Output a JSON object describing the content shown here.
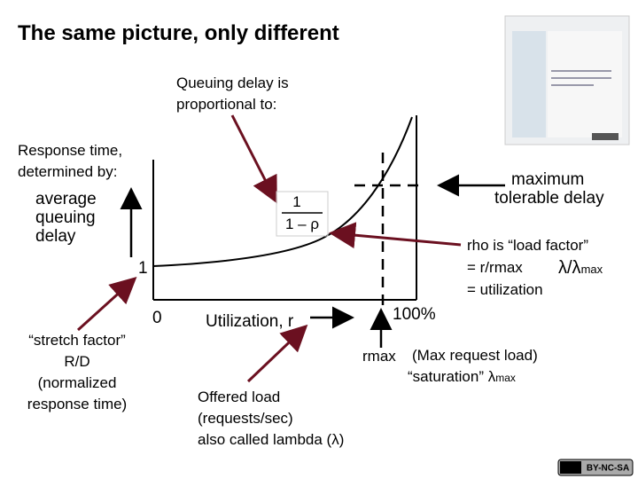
{
  "header": {
    "title": "The same picture, only different"
  },
  "labels": {
    "queuing": [
      "Queuing delay is",
      "proportional to:"
    ],
    "response": [
      "Response time,",
      "determined by:"
    ],
    "y_axis": [
      "average",
      "queuing",
      "delay"
    ],
    "y_one": "1",
    "x_zero": "0",
    "x_axis": "Utilization, r",
    "x_max": "100%",
    "max_delay": [
      "maximum",
      "tolerable delay"
    ],
    "formula": {
      "numerator": "1",
      "denominator": "1 – ρ"
    },
    "rho": [
      "rho is “load factor”",
      "= r/rmax",
      "λ/λ",
      "max",
      "= utilization"
    ],
    "stretch": [
      "“stretch factor”",
      "R/D",
      "(normalized",
      "response time)"
    ],
    "rmax": "rmax",
    "saturation": [
      "(Max request load)",
      "“saturation” λ",
      "max"
    ],
    "offered": [
      "Offered load",
      "(requests/sec)",
      "also called lambda (λ)"
    ]
  },
  "footer": {
    "badge": "BY-NC-SA"
  }
}
